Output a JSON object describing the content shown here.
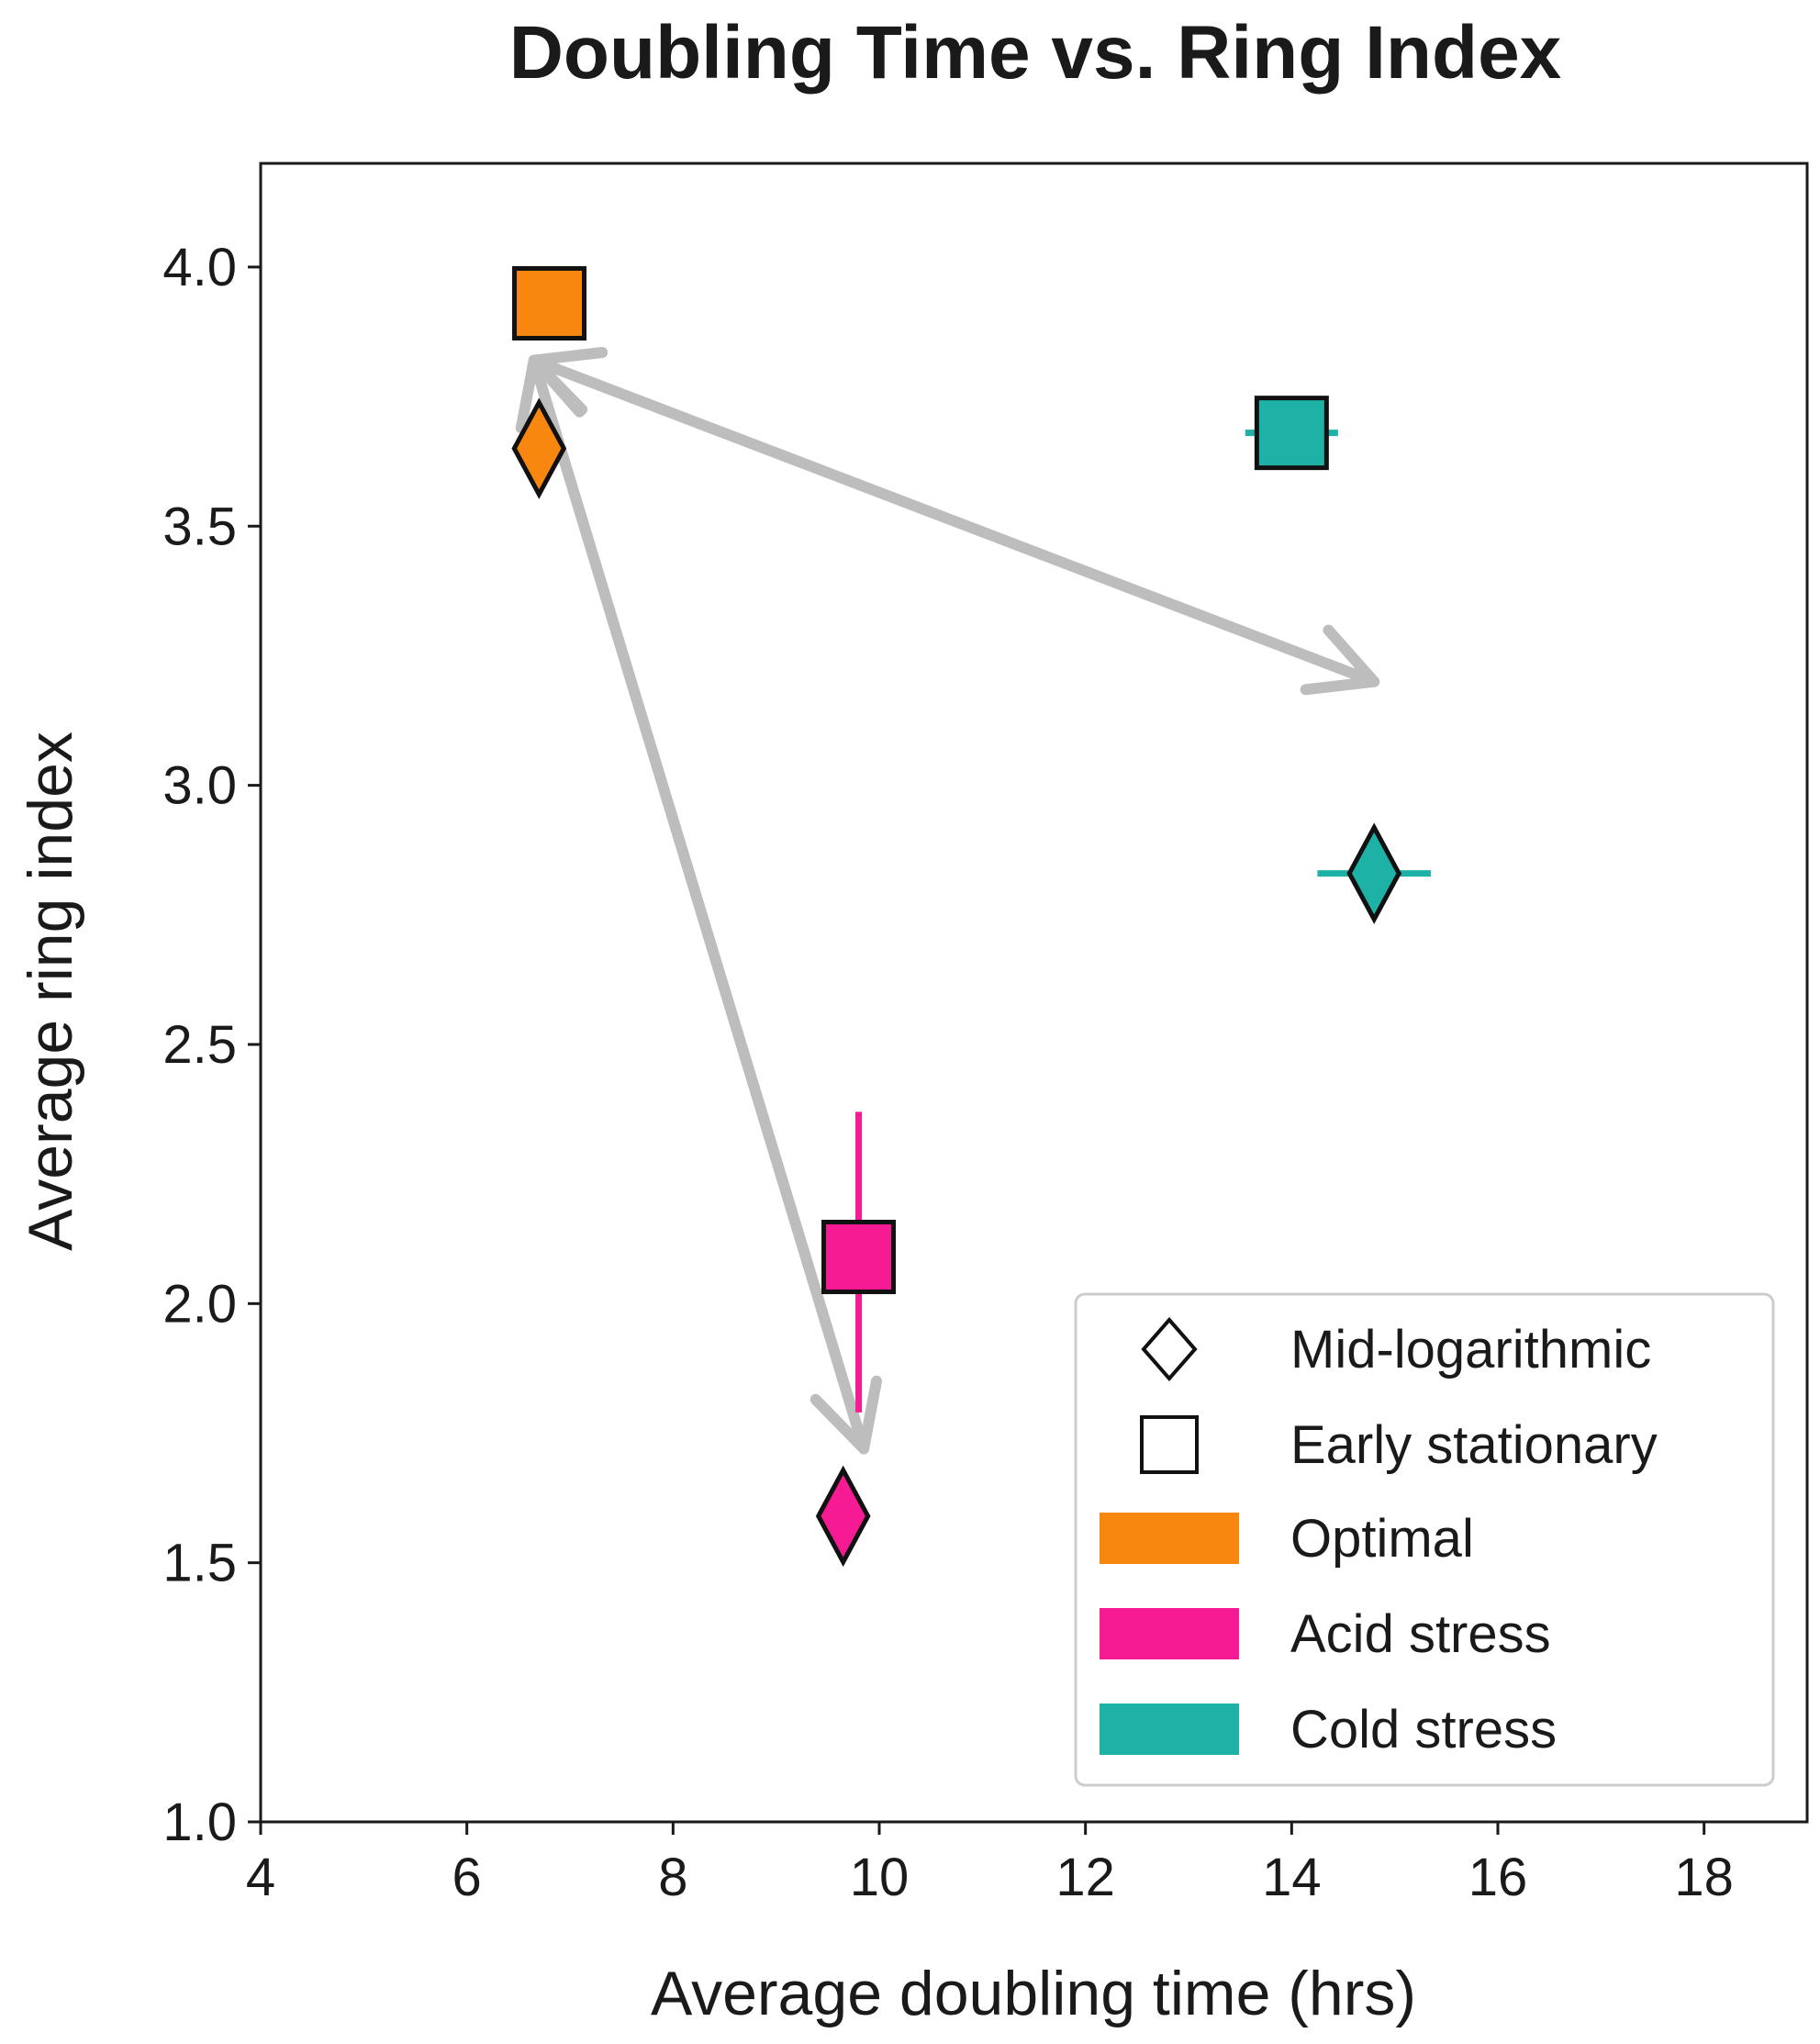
{
  "chart_data": {
    "type": "scatter",
    "title": "Doubling Time vs. Ring Index",
    "xlabel": "Average doubling time (hrs)",
    "ylabel": "Average ring index",
    "xlim": [
      4,
      19
    ],
    "ylim": [
      1.0,
      4.2
    ],
    "xticks": [
      4,
      6,
      8,
      10,
      12,
      14,
      16,
      18
    ],
    "yticks": [
      1.0,
      1.5,
      2.0,
      2.5,
      3.0,
      3.5,
      4.0
    ],
    "xtick_labels": [
      "4",
      "6",
      "8",
      "10",
      "12",
      "14",
      "16",
      "18"
    ],
    "ytick_labels": [
      "1.0",
      "1.5",
      "2.0",
      "2.5",
      "3.0",
      "3.5",
      "4.0"
    ],
    "grid": false,
    "colors": {
      "Optimal": "#f7870f",
      "Acid stress": "#f71b93",
      "Cold stress": "#1eb1a6",
      "arrow": "#bdbdbd"
    },
    "points": [
      {
        "condition": "Optimal",
        "phase": "Early stationary",
        "marker": "square",
        "x": 6.8,
        "y": 3.93,
        "xerr": 0,
        "yerr": 0
      },
      {
        "condition": "Optimal",
        "phase": "Mid-logarithmic",
        "marker": "diamond",
        "x": 6.7,
        "y": 3.65,
        "xerr": 0,
        "yerr": 0
      },
      {
        "condition": "Cold stress",
        "phase": "Early stationary",
        "marker": "square",
        "x": 14.0,
        "y": 3.68,
        "xerr": 0.45,
        "yerr": 0
      },
      {
        "condition": "Cold stress",
        "phase": "Mid-logarithmic",
        "marker": "diamond",
        "x": 14.8,
        "y": 2.83,
        "xerr": 0.55,
        "yerr": 0
      },
      {
        "condition": "Acid stress",
        "phase": "Early stationary",
        "marker": "square",
        "x": 9.8,
        "y": 2.09,
        "xerr": 0,
        "yerr_low": 0.3,
        "yerr_high": 0.28
      },
      {
        "condition": "Acid stress",
        "phase": "Mid-logarithmic",
        "marker": "diamond",
        "x": 9.65,
        "y": 1.59,
        "xerr": 0,
        "yerr": 0
      }
    ],
    "arrows": [
      {
        "from": [
          6.65,
          3.82
        ],
        "to": [
          14.8,
          3.2
        ]
      },
      {
        "from": [
          6.65,
          3.82
        ],
        "to": [
          9.85,
          1.72
        ]
      }
    ],
    "legend": {
      "position": "lower-right",
      "markers": [
        {
          "label": "Mid-logarithmic",
          "marker": "diamond"
        },
        {
          "label": "Early stationary",
          "marker": "square"
        }
      ],
      "patches": [
        {
          "label": "Optimal",
          "color": "#f7870f"
        },
        {
          "label": "Acid stress",
          "color": "#f71b93"
        },
        {
          "label": "Cold stress",
          "color": "#1eb1a6"
        }
      ]
    }
  }
}
